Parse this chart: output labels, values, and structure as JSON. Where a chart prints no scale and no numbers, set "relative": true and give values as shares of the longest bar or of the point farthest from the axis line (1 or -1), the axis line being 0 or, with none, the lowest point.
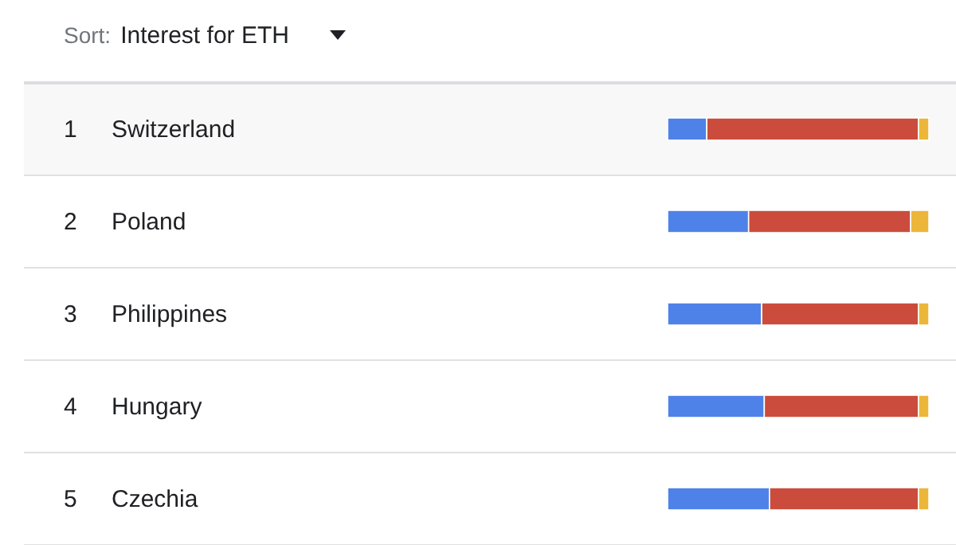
{
  "chart_data": {
    "type": "bar",
    "orientation": "horizontal",
    "stacked": true,
    "relative": true,
    "title": "Sort:",
    "subtitle": "Interest for ETH",
    "categories": [
      "Switzerland",
      "Poland",
      "Philippines",
      "Hungary",
      "Czechia"
    ],
    "series": [
      {
        "color": "#4f82e8",
        "values": [
          0.15,
          0.31,
          0.36,
          0.37,
          0.39
        ]
      },
      {
        "color": "#cb4c3c",
        "values": [
          0.81,
          0.62,
          0.6,
          0.59,
          0.57
        ]
      },
      {
        "color": "#ebb63a",
        "values": [
          0.04,
          0.07,
          0.04,
          0.04,
          0.04
        ]
      }
    ],
    "annotations": [
      "1",
      "2",
      "3",
      "4",
      "5"
    ],
    "bands": [
      {
        "axis": "y",
        "from": "Switzerland",
        "to": "Switzerland",
        "color": "#f8f8f8"
      }
    ]
  }
}
